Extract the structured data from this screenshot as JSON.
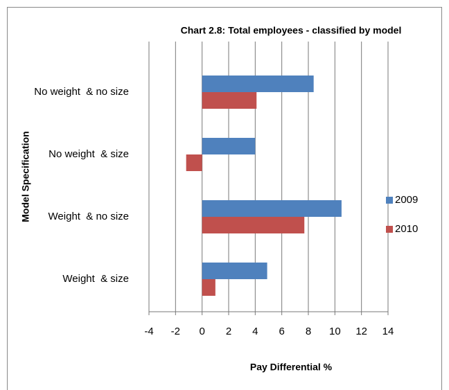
{
  "chart_data": {
    "type": "bar",
    "orientation": "horizontal",
    "title": "Chart 2.8: Total employees - classified by model",
    "x_label": "Pay Differential %",
    "y_label": "Model Specification",
    "categories": [
      "No weight  & no size",
      "No weight  & size",
      "Weight  & no size",
      "Weight  & size"
    ],
    "series": [
      {
        "name": "2009",
        "color": "#4f81bd",
        "values": [
          8.4,
          4.0,
          10.5,
          4.9
        ]
      },
      {
        "name": "2010",
        "color": "#c0504d",
        "values": [
          4.1,
          -1.2,
          7.7,
          1.0
        ]
      }
    ],
    "xlim": [
      -4,
      14
    ],
    "xticks": [
      -4,
      -2,
      0,
      2,
      4,
      6,
      8,
      10,
      12,
      14
    ],
    "grid": true,
    "legend": "right"
  }
}
